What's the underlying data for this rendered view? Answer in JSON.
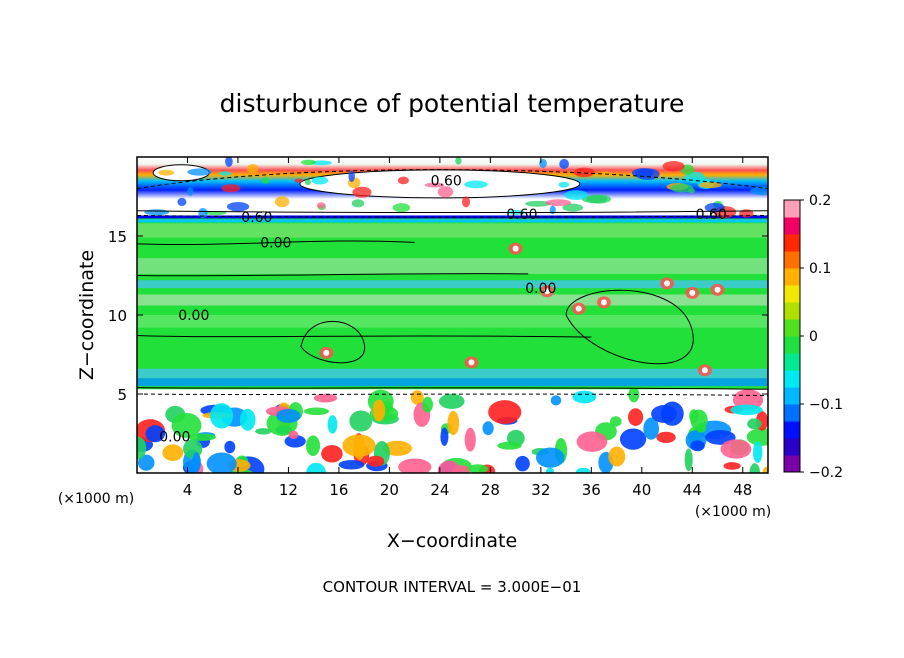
{
  "chart_data": {
    "type": "heatmap",
    "title": "disturbunce of potential temperature",
    "xlabel": "X−coordinate",
    "ylabel": "Z−coordinate",
    "x_unit": "(×1000 m)",
    "y_unit": "(×1000 m)",
    "xlim": [
      0,
      50
    ],
    "ylim": [
      0,
      20
    ],
    "x_ticks": [
      4,
      8,
      12,
      16,
      20,
      24,
      28,
      32,
      36,
      40,
      44,
      48
    ],
    "y_ticks": [
      5,
      10,
      15
    ],
    "colorbar": {
      "range": [
        -0.2,
        0.2
      ],
      "ticks": [
        {
          "value": 0.2,
          "label": "0.2"
        },
        {
          "value": 0.1,
          "label": "0.1"
        },
        {
          "value": 0,
          "label": "0"
        },
        {
          "value": -0.1,
          "label": "−0.1"
        },
        {
          "value": -0.2,
          "label": "−0.2"
        }
      ],
      "colors": [
        "#7a00a8",
        "#2a00c8",
        "#0010ff",
        "#0070ff",
        "#00b8ff",
        "#00e8f0",
        "#00e890",
        "#20e040",
        "#50e020",
        "#b0e000",
        "#f0e800",
        "#ffb000",
        "#ff7000",
        "#ff2800",
        "#f00060",
        "#ffa0b8"
      ]
    },
    "contour_labels": [
      {
        "text": "0.60",
        "x": 24.5,
        "z": 18.5
      },
      {
        "text": "0.60",
        "x": 9.5,
        "z": 16.2
      },
      {
        "text": "0.60",
        "x": 30.5,
        "z": 16.4
      },
      {
        "text": "0.60",
        "x": 45.5,
        "z": 16.4
      },
      {
        "text": "0.00",
        "x": 11,
        "z": 14.6
      },
      {
        "text": "0.00",
        "x": 4.5,
        "z": 10.0
      },
      {
        "text": "0.00",
        "x": 32,
        "z": 11.7
      },
      {
        "text": "0.00",
        "x": 3.0,
        "z": 2.3
      }
    ],
    "annotation": "CONTOUR INTERVAL = 3.000E−01"
  }
}
